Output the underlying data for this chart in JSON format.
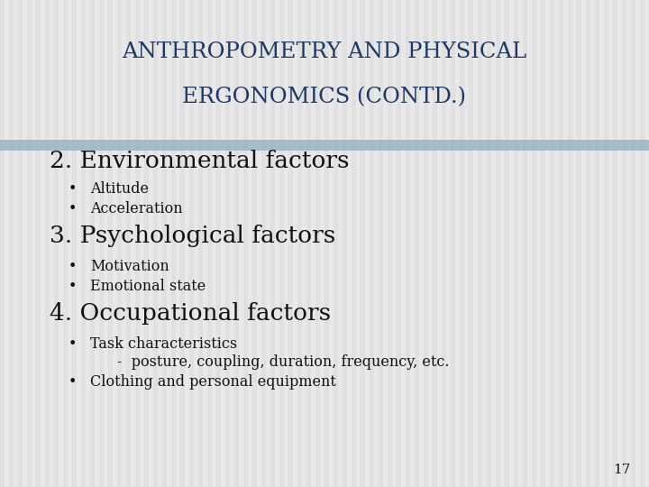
{
  "title_line1": "ANTHROPOMETRY AND PHYSICAL",
  "title_line2": "ERGONOMICS (CONTD.)",
  "title_color": "#1F3864",
  "background_color": "#E8E8E8",
  "stripe_color_light": "#DCDCDC",
  "stripe_color_dark": "#C8C8C8",
  "separator_color": "#8BAABF",
  "body_text_color": "#111111",
  "page_number": "17",
  "sections": [
    {
      "heading": "2. Environmental factors",
      "bullets": [
        {
          "text": "Altitude",
          "indent": 1
        },
        {
          "text": "Acceleration",
          "indent": 1
        }
      ]
    },
    {
      "heading": "3. Psychological factors",
      "bullets": [
        {
          "text": "Motivation",
          "indent": 1
        },
        {
          "text": "Emotional state",
          "indent": 1
        }
      ]
    },
    {
      "heading": "4. Occupational factors",
      "bullets": [
        {
          "text": "Task characteristics",
          "indent": 1
        },
        {
          "text": "-  posture, coupling, duration, frequency, etc.",
          "indent": 2
        },
        {
          "text": "Clothing and personal equipment",
          "indent": 1
        }
      ]
    }
  ],
  "title_fontsize": 17.5,
  "heading_fontsize": 19,
  "bullet_fontsize": 11.5,
  "page_num_fontsize": 11
}
